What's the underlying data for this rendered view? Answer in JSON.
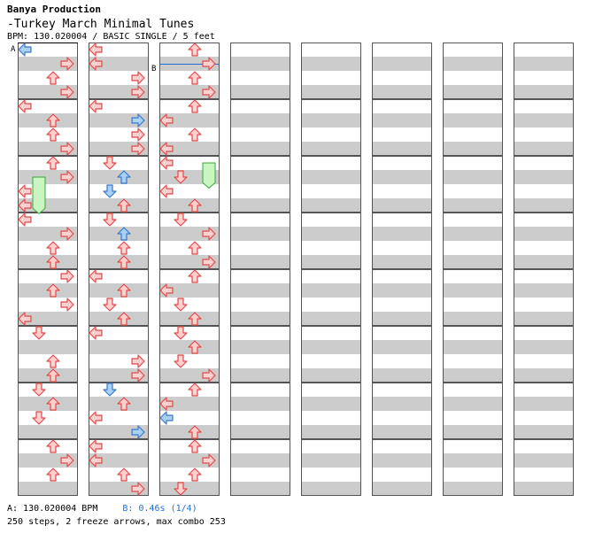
{
  "header": {
    "producer": "Banya Production",
    "title": "-Turkey March Minimal Tunes",
    "info": "BPM: 130.020004 / BASIC SINGLE / 5 feet"
  },
  "markers": {
    "a": "A",
    "b": "B"
  },
  "footer": {
    "a_bpm": "A: 130.020004 BPM",
    "b_stop": "B: 0.46s (1/4)",
    "stats": "250 steps, 2 freeze arrows, max combo 253"
  },
  "colors": {
    "red_fill": "#ffd0d0",
    "red_stroke": "#e04848",
    "blue_fill": "#a9d0f5",
    "blue_stroke": "#3a78c8",
    "freeze_fill": "#c8f5c0",
    "freeze_stroke": "#3aa83a",
    "stripe": "#cccccc",
    "b_marker": "#1f6fd6"
  },
  "chart_data": {
    "type": "step-chart",
    "measures_per_column": 8,
    "lanes": [
      "left",
      "down",
      "up",
      "right"
    ],
    "notes": [
      {
        "m": 0,
        "b": 0,
        "lane": "left",
        "color": "blue"
      },
      {
        "m": 0,
        "b": 0.25,
        "lane": "right",
        "color": "red"
      },
      {
        "m": 0,
        "b": 0.5,
        "lane": "up",
        "color": "red"
      },
      {
        "m": 0,
        "b": 0.75,
        "lane": "right",
        "color": "red"
      },
      {
        "m": 1,
        "b": 0,
        "lane": "left",
        "color": "red"
      },
      {
        "m": 1,
        "b": 0.25,
        "lane": "up",
        "color": "red"
      },
      {
        "m": 1,
        "b": 0.5,
        "lane": "up",
        "color": "red"
      },
      {
        "m": 1,
        "b": 0.75,
        "lane": "right",
        "color": "red"
      },
      {
        "m": 2,
        "b": 0,
        "lane": "up",
        "color": "red"
      },
      {
        "m": 2,
        "b": 0.25,
        "lane": "right",
        "color": "red"
      },
      {
        "m": 2,
        "b": 0.5,
        "lane": "left",
        "color": "red"
      },
      {
        "m": 2,
        "b": 0.75,
        "lane": "left",
        "color": "red"
      },
      {
        "m": 3,
        "b": 0,
        "lane": "left",
        "color": "red"
      },
      {
        "m": 3,
        "b": 0.25,
        "lane": "right",
        "color": "red"
      },
      {
        "m": 3,
        "b": 0.5,
        "lane": "up",
        "color": "red"
      },
      {
        "m": 3,
        "b": 0.75,
        "lane": "up",
        "color": "red"
      },
      {
        "m": 4,
        "b": 0,
        "lane": "right",
        "color": "red"
      },
      {
        "m": 4,
        "b": 0.25,
        "lane": "up",
        "color": "red"
      },
      {
        "m": 4,
        "b": 0.5,
        "lane": "right",
        "color": "red"
      },
      {
        "m": 4,
        "b": 0.75,
        "lane": "left",
        "color": "red"
      },
      {
        "m": 5,
        "b": 0,
        "lane": "down",
        "color": "red"
      },
      {
        "m": 5,
        "b": 0.5,
        "lane": "up",
        "color": "red"
      },
      {
        "m": 5,
        "b": 0.75,
        "lane": "up",
        "color": "red"
      },
      {
        "m": 6,
        "b": 0,
        "lane": "down",
        "color": "red"
      },
      {
        "m": 6,
        "b": 0.25,
        "lane": "up",
        "color": "red"
      },
      {
        "m": 6,
        "b": 0.5,
        "lane": "down",
        "color": "red"
      },
      {
        "m": 7,
        "b": 0,
        "lane": "up",
        "color": "red"
      },
      {
        "m": 7,
        "b": 0.25,
        "lane": "right",
        "color": "red"
      },
      {
        "m": 7,
        "b": 0.5,
        "lane": "up",
        "color": "red"
      },
      {
        "m": 8,
        "b": 0,
        "lane": "left",
        "color": "red"
      },
      {
        "m": 8,
        "b": 0.25,
        "lane": "left",
        "color": "red"
      },
      {
        "m": 8,
        "b": 0.5,
        "lane": "right",
        "color": "red"
      },
      {
        "m": 8,
        "b": 0.75,
        "lane": "right",
        "color": "red"
      },
      {
        "m": 9,
        "b": 0,
        "lane": "left",
        "color": "red"
      },
      {
        "m": 9,
        "b": 0.25,
        "lane": "right",
        "color": "blue"
      },
      {
        "m": 9,
        "b": 0.5,
        "lane": "right",
        "color": "red"
      },
      {
        "m": 9,
        "b": 0.75,
        "lane": "right",
        "color": "red"
      },
      {
        "m": 10,
        "b": 0,
        "lane": "down",
        "color": "red"
      },
      {
        "m": 10,
        "b": 0.25,
        "lane": "up",
        "color": "blue"
      },
      {
        "m": 10,
        "b": 0.5,
        "lane": "down",
        "color": "blue"
      },
      {
        "m": 10,
        "b": 0.75,
        "lane": "up",
        "color": "red"
      },
      {
        "m": 11,
        "b": 0,
        "lane": "down",
        "color": "red"
      },
      {
        "m": 11,
        "b": 0.25,
        "lane": "up",
        "color": "blue"
      },
      {
        "m": 11,
        "b": 0.5,
        "lane": "up",
        "color": "red"
      },
      {
        "m": 11,
        "b": 0.75,
        "lane": "up",
        "color": "red"
      },
      {
        "m": 12,
        "b": 0,
        "lane": "left",
        "color": "red"
      },
      {
        "m": 12,
        "b": 0.25,
        "lane": "up",
        "color": "red"
      },
      {
        "m": 12,
        "b": 0.5,
        "lane": "down",
        "color": "red"
      },
      {
        "m": 12,
        "b": 0.75,
        "lane": "up",
        "color": "red"
      },
      {
        "m": 13,
        "b": 0,
        "lane": "left",
        "color": "red"
      },
      {
        "m": 13,
        "b": 0.5,
        "lane": "right",
        "color": "red"
      },
      {
        "m": 13,
        "b": 0.75,
        "lane": "right",
        "color": "red"
      },
      {
        "m": 14,
        "b": 0,
        "lane": "down",
        "color": "blue"
      },
      {
        "m": 14,
        "b": 0.25,
        "lane": "up",
        "color": "red"
      },
      {
        "m": 14,
        "b": 0.5,
        "lane": "left",
        "color": "red"
      },
      {
        "m": 14,
        "b": 0.75,
        "lane": "right",
        "color": "blue"
      },
      {
        "m": 15,
        "b": 0,
        "lane": "left",
        "color": "red"
      },
      {
        "m": 15,
        "b": 0.25,
        "lane": "left",
        "color": "red"
      },
      {
        "m": 15,
        "b": 0.5,
        "lane": "up",
        "color": "red"
      },
      {
        "m": 15,
        "b": 0.75,
        "lane": "right",
        "color": "red"
      },
      {
        "m": 16,
        "b": 0,
        "lane": "up",
        "color": "red"
      },
      {
        "m": 16,
        "b": 0.25,
        "lane": "right",
        "color": "red"
      },
      {
        "m": 16,
        "b": 0.5,
        "lane": "up",
        "color": "red"
      },
      {
        "m": 16,
        "b": 0.75,
        "lane": "right",
        "color": "red"
      },
      {
        "m": 17,
        "b": 0,
        "lane": "up",
        "color": "red"
      },
      {
        "m": 17,
        "b": 0.25,
        "lane": "left",
        "color": "red"
      },
      {
        "m": 17,
        "b": 0.5,
        "lane": "up",
        "color": "red"
      },
      {
        "m": 17,
        "b": 0.75,
        "lane": "left",
        "color": "red"
      },
      {
        "m": 18,
        "b": 0,
        "lane": "left",
        "color": "red"
      },
      {
        "m": 18,
        "b": 0.25,
        "lane": "down",
        "color": "red"
      },
      {
        "m": 18,
        "b": 0.5,
        "lane": "left",
        "color": "red"
      },
      {
        "m": 18,
        "b": 0.75,
        "lane": "up",
        "color": "red"
      },
      {
        "m": 19,
        "b": 0,
        "lane": "down",
        "color": "red"
      },
      {
        "m": 19,
        "b": 0.25,
        "lane": "right",
        "color": "red"
      },
      {
        "m": 19,
        "b": 0.5,
        "lane": "up",
        "color": "red"
      },
      {
        "m": 19,
        "b": 0.75,
        "lane": "right",
        "color": "red"
      },
      {
        "m": 20,
        "b": 0,
        "lane": "up",
        "color": "red"
      },
      {
        "m": 20,
        "b": 0.25,
        "lane": "left",
        "color": "red"
      },
      {
        "m": 20,
        "b": 0.5,
        "lane": "down",
        "color": "red"
      },
      {
        "m": 20,
        "b": 0.75,
        "lane": "up",
        "color": "red"
      },
      {
        "m": 21,
        "b": 0,
        "lane": "down",
        "color": "red"
      },
      {
        "m": 21,
        "b": 0.25,
        "lane": "up",
        "color": "red"
      },
      {
        "m": 21,
        "b": 0.5,
        "lane": "down",
        "color": "red"
      },
      {
        "m": 21,
        "b": 0.75,
        "lane": "right",
        "color": "red"
      },
      {
        "m": 22,
        "b": 0,
        "lane": "up",
        "color": "red"
      },
      {
        "m": 22,
        "b": 0.25,
        "lane": "left",
        "color": "red"
      },
      {
        "m": 22,
        "b": 0.5,
        "lane": "left",
        "color": "blue"
      },
      {
        "m": 22,
        "b": 0.75,
        "lane": "up",
        "color": "red"
      },
      {
        "m": 23,
        "b": 0,
        "lane": "up",
        "color": "red"
      },
      {
        "m": 23,
        "b": 0.25,
        "lane": "right",
        "color": "red"
      },
      {
        "m": 23,
        "b": 0.5,
        "lane": "up",
        "color": "red"
      },
      {
        "m": 23,
        "b": 0.75,
        "lane": "down",
        "color": "red"
      }
    ],
    "freezes": [
      {
        "m": 2,
        "b": 0.25,
        "len": 0.55,
        "lane": "down"
      },
      {
        "m": 18,
        "b": 0,
        "len": 0.35,
        "lane": "right"
      }
    ]
  }
}
